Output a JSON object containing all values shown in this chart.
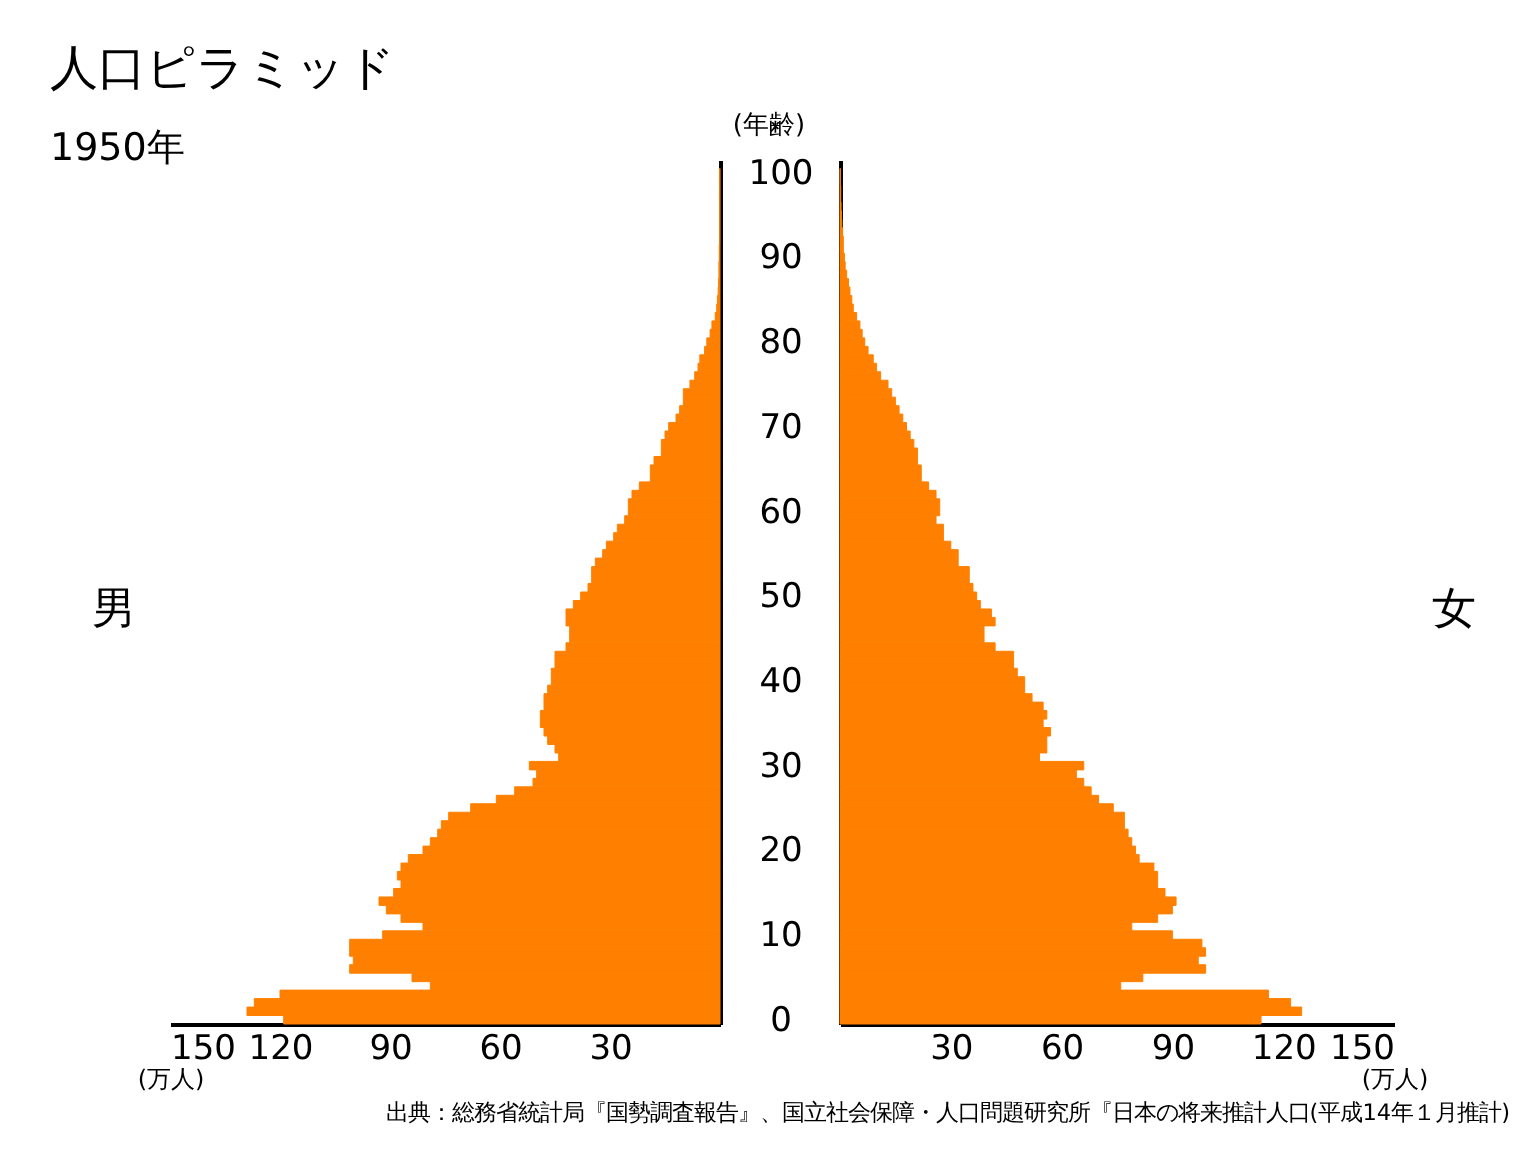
{
  "chart_data": [
    {
      "type": "bar",
      "orientation": "horizontal",
      "title": "人口ピラミッド",
      "subtitle": "1950年",
      "ylabel": "(年齢)",
      "xlabel": "(万人)",
      "x": [
        0,
        1,
        2,
        3,
        4,
        5,
        6,
        7,
        8,
        9,
        10,
        11,
        12,
        13,
        14,
        15,
        16,
        17,
        18,
        19,
        20,
        21,
        22,
        23,
        24,
        25,
        26,
        27,
        28,
        29,
        30,
        31,
        32,
        33,
        34,
        35,
        36,
        37,
        38,
        39,
        40,
        41,
        42,
        43,
        44,
        45,
        46,
        47,
        48,
        49,
        50,
        51,
        52,
        53,
        54,
        55,
        56,
        57,
        58,
        59,
        60,
        61,
        62,
        63,
        64,
        65,
        66,
        67,
        68,
        69,
        70,
        71,
        72,
        73,
        74,
        75,
        76,
        77,
        78,
        79,
        80,
        81,
        82,
        83,
        84,
        85,
        86,
        87,
        88,
        89,
        90,
        91,
        92,
        93,
        94,
        95,
        96,
        97,
        98,
        99,
        100
      ],
      "series": [
        {
          "name": "男",
          "color": "#ff8000",
          "values": [
            119,
            129,
            127,
            120,
            79,
            84,
            101,
            100,
            101,
            101,
            92,
            81,
            87,
            91,
            93,
            89,
            87,
            88,
            87,
            85,
            81,
            79,
            77,
            76,
            74,
            68,
            61,
            56,
            51,
            50,
            52,
            44,
            45,
            47,
            48,
            49,
            49,
            48,
            48,
            47,
            46,
            46,
            45,
            45,
            42,
            41,
            41,
            42,
            42,
            40,
            38,
            36,
            35,
            35,
            34,
            32,
            31,
            29,
            28,
            26,
            25,
            25,
            24,
            22,
            19,
            19,
            18,
            16,
            16,
            15,
            14,
            12,
            11,
            10,
            10,
            8.2,
            6.9,
            6.0,
            5.5,
            4.2,
            3.6,
            2.7,
            2.2,
            1.3,
            0.9,
            0.7,
            0.5,
            0.4,
            0.3,
            0.3,
            0.2,
            0.2,
            0.1,
            0.1,
            0.1,
            0.1,
            0.1,
            0.1,
            0.1,
            0.1,
            0.1
          ]
        }
      ],
      "xlim": [
        150,
        0
      ],
      "xticks": [
        150,
        120,
        90,
        60,
        30
      ],
      "ylim": [
        -0.5,
        101.5
      ],
      "yticks": [
        0,
        10,
        20,
        30,
        40,
        50,
        60,
        70,
        80,
        90,
        100
      ]
    },
    {
      "type": "bar",
      "orientation": "horizontal",
      "xlabel": "(万人)",
      "x": [
        0,
        1,
        2,
        3,
        4,
        5,
        6,
        7,
        8,
        9,
        10,
        11,
        12,
        13,
        14,
        15,
        16,
        17,
        18,
        19,
        20,
        21,
        22,
        23,
        24,
        25,
        26,
        27,
        28,
        29,
        30,
        31,
        32,
        33,
        34,
        35,
        36,
        37,
        38,
        39,
        40,
        41,
        42,
        43,
        44,
        45,
        46,
        47,
        48,
        49,
        50,
        51,
        52,
        53,
        54,
        55,
        56,
        57,
        58,
        59,
        60,
        61,
        62,
        63,
        64,
        65,
        66,
        67,
        68,
        69,
        70,
        71,
        72,
        73,
        74,
        75,
        76,
        77,
        78,
        79,
        80,
        81,
        82,
        83,
        84,
        85,
        86,
        87,
        88,
        89,
        90,
        91,
        92,
        93,
        94,
        95,
        96,
        97,
        98,
        99,
        100
      ],
      "series": [
        {
          "name": "女",
          "color": "#ff8000",
          "values": [
            114,
            125,
            122,
            116,
            76,
            82,
            99,
            97,
            99,
            98,
            90,
            79,
            86,
            90,
            91,
            88,
            86,
            86,
            85,
            81,
            80,
            79,
            78,
            77,
            77,
            74,
            70,
            68,
            66,
            64,
            66,
            54,
            56,
            56,
            57,
            55,
            56,
            55,
            52,
            50,
            50,
            48,
            47,
            47,
            42,
            39,
            39,
            42,
            41,
            38,
            37,
            36,
            35,
            35,
            32,
            32,
            30,
            28,
            28,
            26,
            27,
            27,
            26,
            24,
            22,
            22,
            21,
            21,
            20,
            19,
            18,
            17,
            16,
            15,
            14,
            13,
            11,
            9.9,
            9.0,
            7.6,
            6.7,
            6.0,
            5.4,
            4.5,
            3.6,
            3.2,
            2.7,
            2.3,
            1.8,
            1.4,
            1.2,
            0.9,
            0.9,
            0.7,
            0.5,
            0.4,
            0.3,
            0.2,
            0.2,
            0.1,
            0.1
          ]
        }
      ],
      "xlim": [
        0,
        150
      ],
      "xticks": [
        30,
        60,
        90,
        120,
        150
      ],
      "ylim": [
        -0.5,
        101.5
      ],
      "yticks": [
        0,
        10,
        20,
        30,
        40,
        50,
        60,
        70,
        80,
        90,
        100
      ],
      "tick_labels": "x",
      "annotations": [
        "出典：総務省統計局『国勢調査報告』、国立社会保障・人口問題研究所『日本の将来推計人口(平成14年１月推計)"
      ]
    }
  ]
}
